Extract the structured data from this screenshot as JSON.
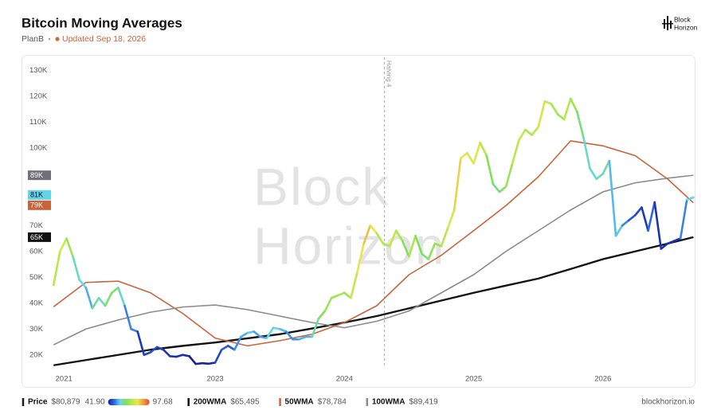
{
  "brand": {
    "line1": "Block",
    "line2": "Horizon"
  },
  "chart_data": {
    "type": "line",
    "title": "Bitcoin Moving Averages",
    "author": "PlanB",
    "updated": "Updated Sep 18, 2026",
    "source": "blockhorizon.io",
    "xlim": [
      2021.73,
      2026.71
    ],
    "xticks": [
      {
        "value": 2021.83,
        "label": "2021"
      },
      2023,
      2024,
      2025,
      2026
    ],
    "ylim": [
      15000,
      135000
    ],
    "yticks": [
      {
        "value": 20000,
        "label": "20K"
      },
      {
        "value": 30000,
        "label": "30K"
      },
      {
        "value": 40000,
        "label": "40K"
      },
      {
        "value": 50000,
        "label": "50K"
      },
      {
        "value": 60000,
        "label": "60K"
      },
      {
        "value": 70000,
        "label": "70K"
      },
      {
        "value": 100000,
        "label": "100K"
      },
      {
        "value": 110000,
        "label": "110K"
      },
      {
        "value": 120000,
        "label": "120K"
      },
      {
        "value": 130000,
        "label": "130K"
      }
    ],
    "grid": false,
    "annotations": [
      {
        "x": 2024.31,
        "label": "Halving 4"
      }
    ],
    "colorscale": {
      "min": {
        "value": 41.9,
        "label": "41.90"
      },
      "max": 97.68,
      "colors": [
        "#16209a",
        "#2b63e3",
        "#5fd6ee",
        "#7fe05a",
        "#b6e84a",
        "#e8e84a",
        "#f09a3a",
        "#e04a3a"
      ]
    },
    "series": [
      {
        "name": "Price",
        "color": "#1b1b1b",
        "current_label": "$80,879",
        "badge": "81K",
        "badge_color": "#63d3ea",
        "x": [
          2021.75,
          2021.8,
          2021.85,
          2021.9,
          2021.95,
          2022.0,
          2022.05,
          2022.1,
          2022.15,
          2022.2,
          2022.25,
          2022.3,
          2022.35,
          2022.4,
          2022.45,
          2022.5,
          2022.55,
          2022.6,
          2022.65,
          2022.7,
          2022.75,
          2022.8,
          2022.85,
          2022.9,
          2022.95,
          2023.0,
          2023.05,
          2023.1,
          2023.15,
          2023.2,
          2023.25,
          2023.3,
          2023.35,
          2023.4,
          2023.45,
          2023.5,
          2023.55,
          2023.6,
          2023.65,
          2023.7,
          2023.75,
          2023.8,
          2023.85,
          2023.9,
          2023.95,
          2024.0,
          2024.05,
          2024.1,
          2024.15,
          2024.2,
          2024.25,
          2024.3,
          2024.35,
          2024.4,
          2024.45,
          2024.5,
          2024.55,
          2024.6,
          2024.65,
          2024.7,
          2024.75,
          2024.8,
          2024.85,
          2024.9,
          2024.95,
          2025.0,
          2025.05,
          2025.1,
          2025.15,
          2025.2,
          2025.25,
          2025.3,
          2025.35,
          2025.4,
          2025.45,
          2025.5,
          2025.55,
          2025.6,
          2025.65,
          2025.7,
          2025.75,
          2025.8,
          2025.85,
          2025.9,
          2025.95,
          2026.0,
          2026.05,
          2026.1,
          2026.15,
          2026.2,
          2026.25,
          2026.3,
          2026.35,
          2026.4,
          2026.45,
          2026.5,
          2026.55,
          2026.6,
          2026.65,
          2026.7
        ],
        "values": [
          47000,
          60000,
          65000,
          58000,
          49000,
          46000,
          38000,
          42000,
          39000,
          44000,
          46000,
          39000,
          30000,
          29000,
          20000,
          21000,
          23000,
          22000,
          19500,
          19300,
          20000,
          19500,
          16500,
          16800,
          16600,
          17000,
          22000,
          23500,
          22000,
          27000,
          28500,
          29000,
          27000,
          26500,
          30500,
          30000,
          29000,
          26000,
          26000,
          27000,
          27000,
          34000,
          37000,
          42000,
          43000,
          44000,
          42000,
          52000,
          63000,
          70000,
          67000,
          63000,
          62000,
          68000,
          64000,
          58000,
          66000,
          59000,
          57000,
          63000,
          62000,
          69000,
          76000,
          96000,
          98000,
          94000,
          102000,
          97000,
          86000,
          83000,
          85000,
          94000,
          103000,
          107000,
          105000,
          108000,
          118000,
          117000,
          113000,
          111000,
          119000,
          114000,
          104000,
          92000,
          88000,
          90000,
          95000,
          66000,
          70000,
          72000,
          74000,
          77000,
          68000,
          79000,
          61000,
          63000,
          64000,
          65000,
          80000,
          80879
        ],
        "heat": [
          66,
          74,
          78,
          70,
          60,
          58,
          55,
          62,
          60,
          65,
          66,
          60,
          52,
          52,
          45,
          46,
          47,
          46,
          44,
          44,
          44,
          43,
          42,
          42,
          42,
          43,
          47,
          49,
          48,
          53,
          55,
          57,
          54,
          54,
          58,
          58,
          56,
          53,
          53,
          55,
          55,
          62,
          66,
          70,
          70,
          72,
          70,
          76,
          82,
          86,
          82,
          74,
          72,
          76,
          72,
          66,
          72,
          66,
          64,
          68,
          70,
          74,
          78,
          84,
          82,
          78,
          80,
          74,
          66,
          63,
          65,
          70,
          74,
          76,
          72,
          74,
          78,
          76,
          72,
          70,
          74,
          70,
          64,
          60,
          58,
          60,
          62,
          56,
          57,
          52,
          48,
          47,
          45,
          50,
          44,
          44,
          44,
          44,
          52,
          58
        ]
      },
      {
        "name": "200WMA",
        "color": "#111111",
        "current_label": "$65,495",
        "badge": "65K",
        "badge_color": "#111111",
        "x": [
          2021.75,
          2022.0,
          2022.25,
          2022.5,
          2022.75,
          2023.0,
          2023.25,
          2023.5,
          2023.75,
          2024.0,
          2024.25,
          2024.5,
          2024.75,
          2025.0,
          2025.25,
          2025.5,
          2025.75,
          2026.0,
          2026.25,
          2026.5,
          2026.7
        ],
        "values": [
          16000,
          18000,
          20000,
          22000,
          23500,
          24800,
          26400,
          28000,
          30200,
          32500,
          35000,
          38000,
          41000,
          44000,
          46800,
          49500,
          53200,
          57000,
          60000,
          63000,
          65495
        ]
      },
      {
        "name": "50WMA",
        "color": "#c8643c",
        "current_label": "$78,784",
        "badge": "79K",
        "badge_color": "#c8643c",
        "x": [
          2021.75,
          2022.0,
          2022.25,
          2022.5,
          2022.75,
          2023.0,
          2023.25,
          2023.5,
          2023.75,
          2024.0,
          2024.25,
          2024.5,
          2024.75,
          2025.0,
          2025.25,
          2025.5,
          2025.75,
          2026.0,
          2026.25,
          2026.5,
          2026.7
        ],
        "values": [
          38600,
          48000,
          48500,
          44000,
          36000,
          26500,
          23500,
          25500,
          28000,
          32500,
          39000,
          51000,
          58500,
          68000,
          77700,
          88800,
          102700,
          100800,
          97000,
          88000,
          78784
        ]
      },
      {
        "name": "100WMA",
        "color": "#8a8a8a",
        "current_label": "$89,419",
        "badge": "89K",
        "badge_color": "#707078",
        "x": [
          2021.75,
          2022.0,
          2022.25,
          2022.5,
          2022.75,
          2023.0,
          2023.25,
          2023.5,
          2023.75,
          2024.0,
          2024.25,
          2024.5,
          2024.75,
          2025.0,
          2025.25,
          2025.5,
          2025.75,
          2026.0,
          2026.25,
          2026.5,
          2026.7
        ],
        "values": [
          23900,
          30000,
          33500,
          36500,
          38500,
          39300,
          37500,
          35000,
          32500,
          30500,
          33000,
          37000,
          44000,
          51000,
          60000,
          68000,
          76000,
          83000,
          86500,
          88300,
          89419
        ]
      }
    ]
  }
}
